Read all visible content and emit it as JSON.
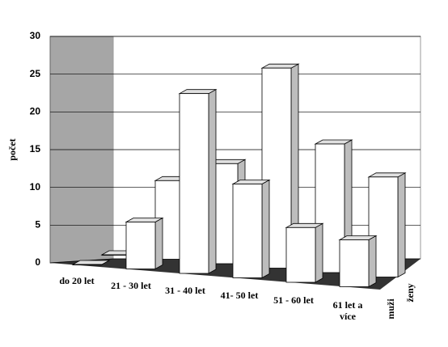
{
  "chart_data": {
    "type": "bar3d",
    "y_label": "počet",
    "categories": [
      "do 20 let",
      "21 - 30 let",
      "31 - 40 let",
      "41- 50 let",
      "51 - 60 let",
      "61 let a více"
    ],
    "series": [
      {
        "name": "muži",
        "color": "#ffffff",
        "values": [
          0,
          6,
          23,
          12,
          7,
          6
        ]
      },
      {
        "name": "ženy",
        "color": "#ffffff",
        "values": [
          0,
          11,
          14,
          28,
          18,
          14
        ]
      }
    ],
    "ylim": [
      0,
      30
    ],
    "yticks": [
      0,
      5,
      10,
      15,
      20,
      25,
      30
    ],
    "grid": true
  }
}
